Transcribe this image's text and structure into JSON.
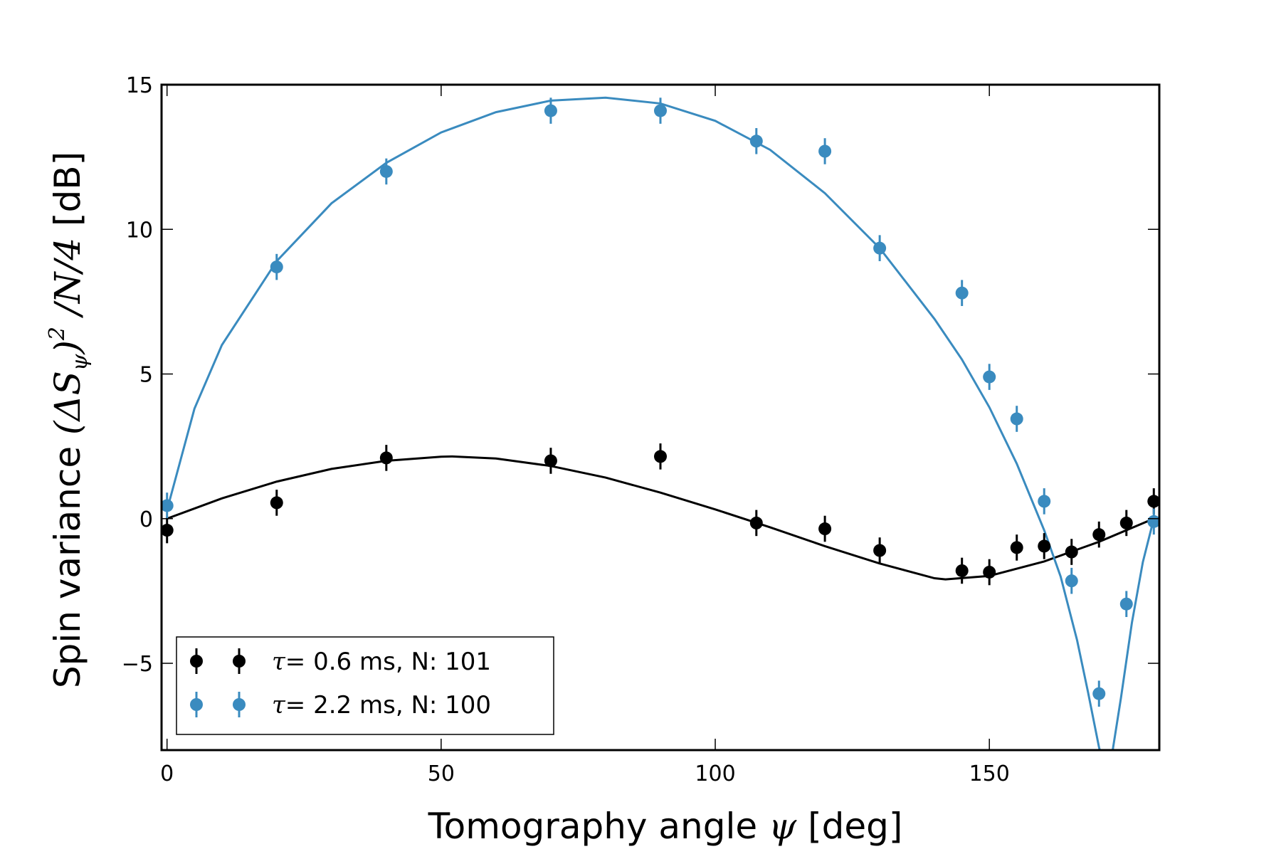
{
  "chart_data": {
    "type": "scatter",
    "xlabel": "Tomography angle ψ [deg]",
    "xlabel_parts": {
      "pre": "Tomography angle ",
      "sym": "ψ",
      "post": " [deg]"
    },
    "ylabel": "Spin variance (ΔS_ψ)² /N/4 [dB]",
    "ylabel_parts": {
      "pre": "Spin variance ",
      "math": "(ΔS",
      "sub": "ψ",
      "close": ")",
      "sup": "2",
      "tail_math": " /N/4",
      "post": " [dB]"
    },
    "xlim": [
      -1,
      181
    ],
    "ylim": [
      -8,
      15
    ],
    "xticks": [
      0,
      50,
      100,
      150
    ],
    "yticks": [
      -5,
      0,
      5,
      10,
      15
    ],
    "xtick_labels": [
      "0",
      "50",
      "100",
      "150"
    ],
    "ytick_labels": [
      "−5",
      "0",
      "5",
      "10",
      "15"
    ],
    "legend_position": "lower-left",
    "series": [
      {
        "name": "τ= 0.6 ms, N: 101",
        "legend_sym": "τ=",
        "legend_rest": " 0.6 ms, N: 101",
        "color": "#000000",
        "x": [
          0,
          20,
          40,
          70,
          90,
          107.5,
          120,
          130,
          145,
          150,
          155,
          160,
          165,
          170,
          175,
          180
        ],
        "y": [
          -0.4,
          0.55,
          2.1,
          2.0,
          2.15,
          -0.15,
          -0.35,
          -1.1,
          -1.8,
          -1.85,
          -1.0,
          -0.95,
          -1.15,
          -0.55,
          -0.15,
          0.6
        ],
        "err": [
          0.45,
          0.45,
          0.45,
          0.45,
          0.45,
          0.45,
          0.45,
          0.45,
          0.45,
          0.45,
          0.45,
          0.45,
          0.45,
          0.45,
          0.45,
          0.45
        ],
        "fit_x": [
          0,
          10,
          20,
          30,
          40,
          50,
          52,
          60,
          70,
          80,
          90,
          100,
          110,
          120,
          130,
          140,
          142,
          150,
          160,
          170,
          180
        ],
        "fit_y": [
          0.0,
          0.7,
          1.28,
          1.72,
          2.0,
          2.14,
          2.15,
          2.08,
          1.82,
          1.42,
          0.9,
          0.32,
          -0.3,
          -0.95,
          -1.55,
          -2.06,
          -2.1,
          -1.98,
          -1.48,
          -0.8,
          0.0
        ]
      },
      {
        "name": "τ= 2.2 ms, N: 100",
        "legend_sym": "τ=",
        "legend_rest": " 2.2 ms, N: 100",
        "color": "#3a8bbf",
        "x": [
          0,
          20,
          40,
          70,
          90,
          107.5,
          120,
          130,
          145,
          150,
          155,
          160,
          165,
          170,
          175,
          180
        ],
        "y": [
          0.45,
          8.7,
          12.0,
          14.1,
          14.1,
          13.05,
          12.7,
          9.35,
          7.8,
          4.9,
          3.45,
          0.6,
          -2.15,
          -6.05,
          -2.95,
          -0.1
        ],
        "err": [
          0.45,
          0.45,
          0.45,
          0.45,
          0.45,
          0.45,
          0.45,
          0.45,
          0.45,
          0.45,
          0.45,
          0.45,
          0.45,
          0.45,
          0.45,
          0.45
        ],
        "fit_x": [
          0,
          5,
          10,
          20,
          30,
          40,
          50,
          60,
          70,
          80,
          90,
          100,
          110,
          120,
          130,
          140,
          145,
          150,
          155,
          160,
          163,
          166,
          168,
          170,
          171,
          172,
          174,
          176,
          178,
          180
        ],
        "fit_y": [
          0.3,
          3.8,
          6.0,
          8.9,
          10.9,
          12.3,
          13.35,
          14.05,
          14.45,
          14.55,
          14.35,
          13.75,
          12.75,
          11.25,
          9.35,
          6.9,
          5.5,
          3.85,
          1.9,
          -0.4,
          -2.0,
          -4.2,
          -6.0,
          -7.9,
          -8.6,
          -8.6,
          -6.2,
          -3.6,
          -1.5,
          0.0
        ]
      }
    ]
  }
}
